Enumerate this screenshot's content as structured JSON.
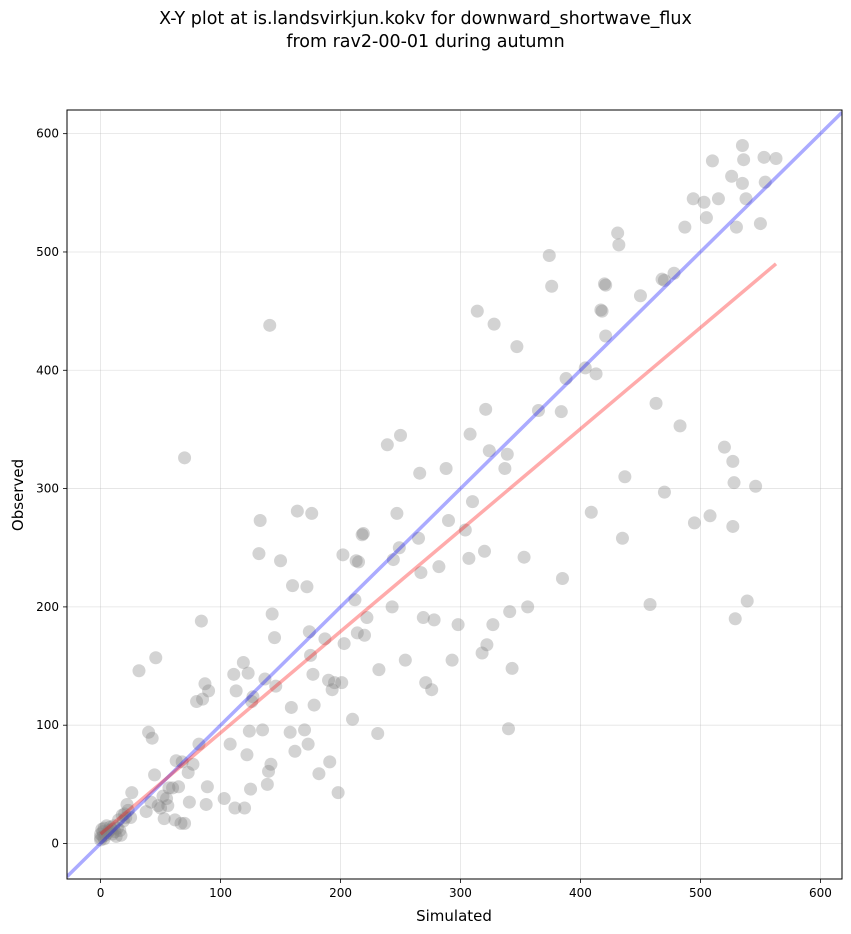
{
  "chart_data": {
    "type": "scatter",
    "title": "X-Y plot at is.landsvirkjun.kokv for downward_shortwave_flux",
    "subtitle": "from rav2-00-01 during autumn",
    "xlabel": "Simulated",
    "ylabel": "Observed",
    "xlim": [
      -28,
      618
    ],
    "ylim": [
      -30,
      620
    ],
    "xticks": [
      0,
      100,
      200,
      300,
      400,
      500,
      600
    ],
    "yticks": [
      0,
      100,
      200,
      300,
      400,
      500,
      600
    ],
    "grid": true,
    "reference_lines": [
      {
        "kind": "identity",
        "color": "#0000ff",
        "x": [
          -28,
          618
        ],
        "y": [
          -28,
          618
        ]
      },
      {
        "kind": "regression",
        "color": "#ff0000",
        "x": [
          0,
          563
        ],
        "y": [
          8,
          490
        ]
      }
    ],
    "point_color": "#808080",
    "points": [
      [
        0,
        5
      ],
      [
        0,
        8
      ],
      [
        0,
        3
      ],
      [
        1,
        12
      ],
      [
        2,
        6
      ],
      [
        2,
        10
      ],
      [
        3,
        4
      ],
      [
        3,
        13
      ],
      [
        4,
        7
      ],
      [
        5,
        15
      ],
      [
        6,
        9
      ],
      [
        7,
        11
      ],
      [
        8,
        14
      ],
      [
        9,
        12
      ],
      [
        10,
        8
      ],
      [
        11,
        15
      ],
      [
        12,
        10
      ],
      [
        13,
        6
      ],
      [
        14,
        13
      ],
      [
        15,
        20
      ],
      [
        16,
        11
      ],
      [
        17,
        7
      ],
      [
        18,
        24
      ],
      [
        19,
        19
      ],
      [
        20,
        25
      ],
      [
        21,
        22
      ],
      [
        22,
        33
      ],
      [
        23,
        28
      ],
      [
        25,
        22
      ],
      [
        26,
        43
      ],
      [
        32,
        146
      ],
      [
        38,
        27
      ],
      [
        40,
        94
      ],
      [
        42,
        35
      ],
      [
        43,
        89
      ],
      [
        45,
        58
      ],
      [
        46,
        157
      ],
      [
        48,
        32
      ],
      [
        50,
        30
      ],
      [
        52,
        40
      ],
      [
        53,
        21
      ],
      [
        55,
        38
      ],
      [
        56,
        32
      ],
      [
        57,
        47
      ],
      [
        60,
        47
      ],
      [
        62,
        20
      ],
      [
        63,
        70
      ],
      [
        65,
        48
      ],
      [
        67,
        17
      ],
      [
        68,
        69
      ],
      [
        70,
        326
      ],
      [
        70,
        17
      ],
      [
        73,
        60
      ],
      [
        74,
        35
      ],
      [
        77,
        67
      ],
      [
        80,
        120
      ],
      [
        82,
        84
      ],
      [
        84,
        188
      ],
      [
        85,
        122
      ],
      [
        87,
        135
      ],
      [
        88,
        33
      ],
      [
        89,
        48
      ],
      [
        90,
        129
      ],
      [
        103,
        38
      ],
      [
        108,
        84
      ],
      [
        111,
        143
      ],
      [
        112,
        30
      ],
      [
        113,
        129
      ],
      [
        119,
        153
      ],
      [
        120,
        30
      ],
      [
        122,
        75
      ],
      [
        123,
        144
      ],
      [
        124,
        95
      ],
      [
        125,
        46
      ],
      [
        126,
        120
      ],
      [
        127,
        124
      ],
      [
        132,
        245
      ],
      [
        133,
        273
      ],
      [
        135,
        96
      ],
      [
        137,
        139
      ],
      [
        139,
        50
      ],
      [
        140,
        61
      ],
      [
        141,
        438
      ],
      [
        142,
        67
      ],
      [
        143,
        194
      ],
      [
        145,
        174
      ],
      [
        146,
        133
      ],
      [
        150,
        239
      ],
      [
        158,
        94
      ],
      [
        159,
        115
      ],
      [
        160,
        218
      ],
      [
        162,
        78
      ],
      [
        164,
        281
      ],
      [
        170,
        96
      ],
      [
        172,
        217
      ],
      [
        173,
        84
      ],
      [
        174,
        179
      ],
      [
        175,
        159
      ],
      [
        176,
        279
      ],
      [
        177,
        143
      ],
      [
        178,
        117
      ],
      [
        182,
        59
      ],
      [
        187,
        173
      ],
      [
        190,
        138
      ],
      [
        191,
        69
      ],
      [
        193,
        130
      ],
      [
        195,
        136
      ],
      [
        198,
        43
      ],
      [
        201,
        136
      ],
      [
        202,
        244
      ],
      [
        203,
        169
      ],
      [
        210,
        105
      ],
      [
        212,
        206
      ],
      [
        213,
        239
      ],
      [
        214,
        178
      ],
      [
        215,
        238
      ],
      [
        218,
        261
      ],
      [
        219,
        262
      ],
      [
        220,
        176
      ],
      [
        222,
        191
      ],
      [
        231,
        93
      ],
      [
        232,
        147
      ],
      [
        239,
        337
      ],
      [
        243,
        200
      ],
      [
        244,
        240
      ],
      [
        247,
        279
      ],
      [
        249,
        250
      ],
      [
        250,
        345
      ],
      [
        254,
        155
      ],
      [
        265,
        258
      ],
      [
        266,
        313
      ],
      [
        267,
        229
      ],
      [
        269,
        191
      ],
      [
        271,
        136
      ],
      [
        276,
        130
      ],
      [
        278,
        189
      ],
      [
        282,
        234
      ],
      [
        288,
        317
      ],
      [
        290,
        273
      ],
      [
        293,
        155
      ],
      [
        298,
        185
      ],
      [
        304,
        265
      ],
      [
        307,
        241
      ],
      [
        308,
        346
      ],
      [
        310,
        289
      ],
      [
        314,
        450
      ],
      [
        318,
        161
      ],
      [
        320,
        247
      ],
      [
        321,
        367
      ],
      [
        322,
        168
      ],
      [
        324,
        332
      ],
      [
        327,
        185
      ],
      [
        328,
        439
      ],
      [
        337,
        317
      ],
      [
        339,
        329
      ],
      [
        340,
        97
      ],
      [
        341,
        196
      ],
      [
        343,
        148
      ],
      [
        347,
        420
      ],
      [
        353,
        242
      ],
      [
        356,
        200
      ],
      [
        365,
        366
      ],
      [
        374,
        497
      ],
      [
        376,
        471
      ],
      [
        384,
        365
      ],
      [
        385,
        224
      ],
      [
        388,
        393
      ],
      [
        404,
        402
      ],
      [
        409,
        280
      ],
      [
        413,
        397
      ],
      [
        417,
        451
      ],
      [
        418,
        450
      ],
      [
        420,
        473
      ],
      [
        421,
        472
      ],
      [
        421,
        429
      ],
      [
        431,
        516
      ],
      [
        432,
        506
      ],
      [
        435,
        258
      ],
      [
        437,
        310
      ],
      [
        450,
        463
      ],
      [
        458,
        202
      ],
      [
        463,
        372
      ],
      [
        468,
        477
      ],
      [
        470,
        476
      ],
      [
        470,
        297
      ],
      [
        478,
        482
      ],
      [
        483,
        353
      ],
      [
        487,
        521
      ],
      [
        494,
        545
      ],
      [
        495,
        271
      ],
      [
        503,
        542
      ],
      [
        505,
        529
      ],
      [
        508,
        277
      ],
      [
        510,
        577
      ],
      [
        515,
        545
      ],
      [
        520,
        335
      ],
      [
        526,
        564
      ],
      [
        527,
        323
      ],
      [
        527,
        268
      ],
      [
        528,
        305
      ],
      [
        529,
        190
      ],
      [
        530,
        521
      ],
      [
        535,
        590
      ],
      [
        535,
        558
      ],
      [
        536,
        578
      ],
      [
        538,
        545
      ],
      [
        539,
        205
      ],
      [
        546,
        302
      ],
      [
        550,
        524
      ],
      [
        553,
        580
      ],
      [
        554,
        559
      ],
      [
        563,
        579
      ]
    ]
  }
}
